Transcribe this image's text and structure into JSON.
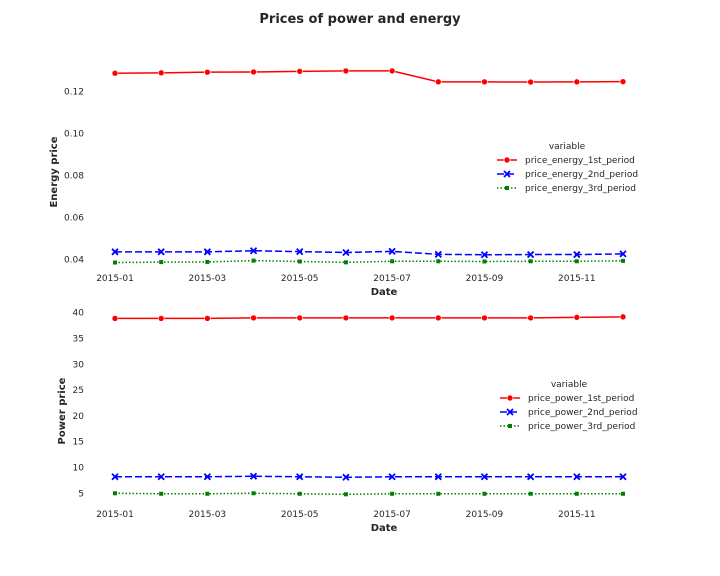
{
  "figure": {
    "title": "Prices of power and energy"
  },
  "chart_data": [
    {
      "type": "line",
      "xlabel": "Date",
      "ylabel": "Energy price",
      "x": [
        "2015-01",
        "2015-02",
        "2015-03",
        "2015-04",
        "2015-05",
        "2015-06",
        "2015-07",
        "2015-08",
        "2015-09",
        "2015-10",
        "2015-11",
        "2015-12"
      ],
      "x_ticks": [
        "2015-01",
        "2015-03",
        "2015-05",
        "2015-07",
        "2015-09",
        "2015-11"
      ],
      "ylim": [
        0.036,
        0.135
      ],
      "y_ticks": [
        0.04,
        0.06,
        0.08,
        0.1,
        0.12
      ],
      "y_tick_labels": [
        "0.04",
        "0.06",
        "0.08",
        "0.10",
        "0.12"
      ],
      "grid": false,
      "legend": {
        "title": "variable",
        "placement": "center-right"
      },
      "series": [
        {
          "name": "price_energy_1st_period",
          "color": "#ff0000",
          "marker": "circle",
          "dash": "solid",
          "values": [
            0.1287,
            0.1289,
            0.1292,
            0.1293,
            0.1296,
            0.1298,
            0.1298,
            0.1246,
            0.1246,
            0.1245,
            0.1246,
            0.1247
          ]
        },
        {
          "name": "price_energy_2nd_period",
          "color": "#0000ff",
          "marker": "x",
          "dash": "dashed",
          "values": [
            0.0437,
            0.0437,
            0.0437,
            0.0442,
            0.0438,
            0.0434,
            0.0439,
            0.0425,
            0.0423,
            0.0424,
            0.0424,
            0.0427
          ]
        },
        {
          "name": "price_energy_3rd_period",
          "color": "#008000",
          "marker": "square",
          "dash": "dotted",
          "values": [
            0.0386,
            0.0388,
            0.0389,
            0.0395,
            0.0391,
            0.0387,
            0.0392,
            0.0392,
            0.0391,
            0.0392,
            0.0392,
            0.0394
          ]
        }
      ]
    },
    {
      "type": "line",
      "xlabel": "Date",
      "ylabel": "Power price",
      "x": [
        "2015-01",
        "2015-02",
        "2015-03",
        "2015-04",
        "2015-05",
        "2015-06",
        "2015-07",
        "2015-08",
        "2015-09",
        "2015-10",
        "2015-11",
        "2015-12"
      ],
      "x_ticks": [
        "2015-01",
        "2015-03",
        "2015-05",
        "2015-07",
        "2015-09",
        "2015-11"
      ],
      "ylim": [
        3.5,
        41.5
      ],
      "y_ticks": [
        5,
        10,
        15,
        20,
        25,
        30,
        35,
        40
      ],
      "y_tick_labels": [
        "5",
        "10",
        "15",
        "20",
        "25",
        "30",
        "35",
        "40"
      ],
      "grid": false,
      "legend": {
        "title": "variable",
        "placement": "center-right"
      },
      "series": [
        {
          "name": "price_power_1st_period",
          "color": "#ff0000",
          "marker": "circle",
          "dash": "solid",
          "values": [
            38.9,
            38.9,
            38.9,
            39.0,
            39.0,
            39.0,
            39.0,
            39.0,
            39.0,
            39.0,
            39.1,
            39.2
          ]
        },
        {
          "name": "price_power_2nd_period",
          "color": "#0000ff",
          "marker": "x",
          "dash": "dashed",
          "values": [
            8.2,
            8.2,
            8.2,
            8.3,
            8.2,
            8.1,
            8.2,
            8.2,
            8.2,
            8.2,
            8.2,
            8.2
          ]
        },
        {
          "name": "price_power_3rd_period",
          "color": "#008000",
          "marker": "square",
          "dash": "dotted",
          "values": [
            5.0,
            4.9,
            4.9,
            5.0,
            4.9,
            4.8,
            4.9,
            4.9,
            4.9,
            4.9,
            4.9,
            4.9
          ]
        }
      ]
    }
  ]
}
